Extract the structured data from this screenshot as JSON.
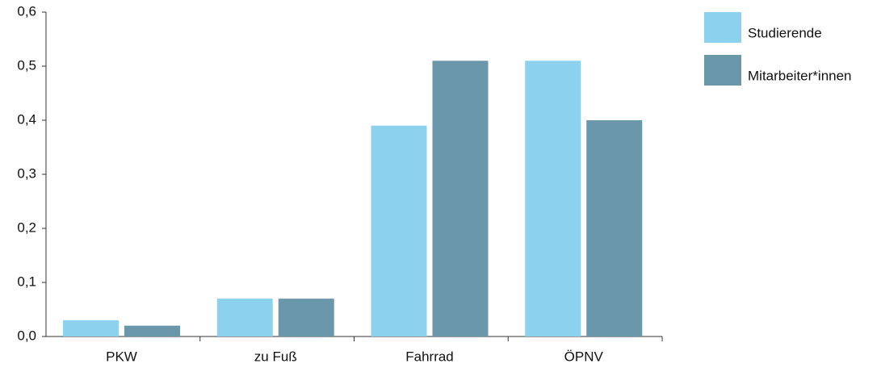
{
  "chart_data": {
    "type": "bar",
    "categories": [
      "PKW",
      "zu Fuß",
      "Fahrrad",
      "ÖPNV"
    ],
    "series": [
      {
        "name": "Studierende",
        "color": "#8cd2ee",
        "values": [
          0.03,
          0.07,
          0.39,
          0.51
        ]
      },
      {
        "name": "Mitarbeiter*innen",
        "color": "#6a97aa",
        "values": [
          0.02,
          0.07,
          0.51,
          0.4
        ]
      }
    ],
    "ylim": [
      0,
      0.6
    ],
    "yticks": [
      {
        "value": 0,
        "label": "0,0"
      },
      {
        "value": 0.1,
        "label": "0,1"
      },
      {
        "value": 0.2,
        "label": "0,2"
      },
      {
        "value": 0.3,
        "label": "0,3"
      },
      {
        "value": 0.4,
        "label": "0,4"
      },
      {
        "value": 0.5,
        "label": "0,5"
      },
      {
        "value": 0.6,
        "label": "0,6"
      }
    ],
    "legend": "right"
  }
}
